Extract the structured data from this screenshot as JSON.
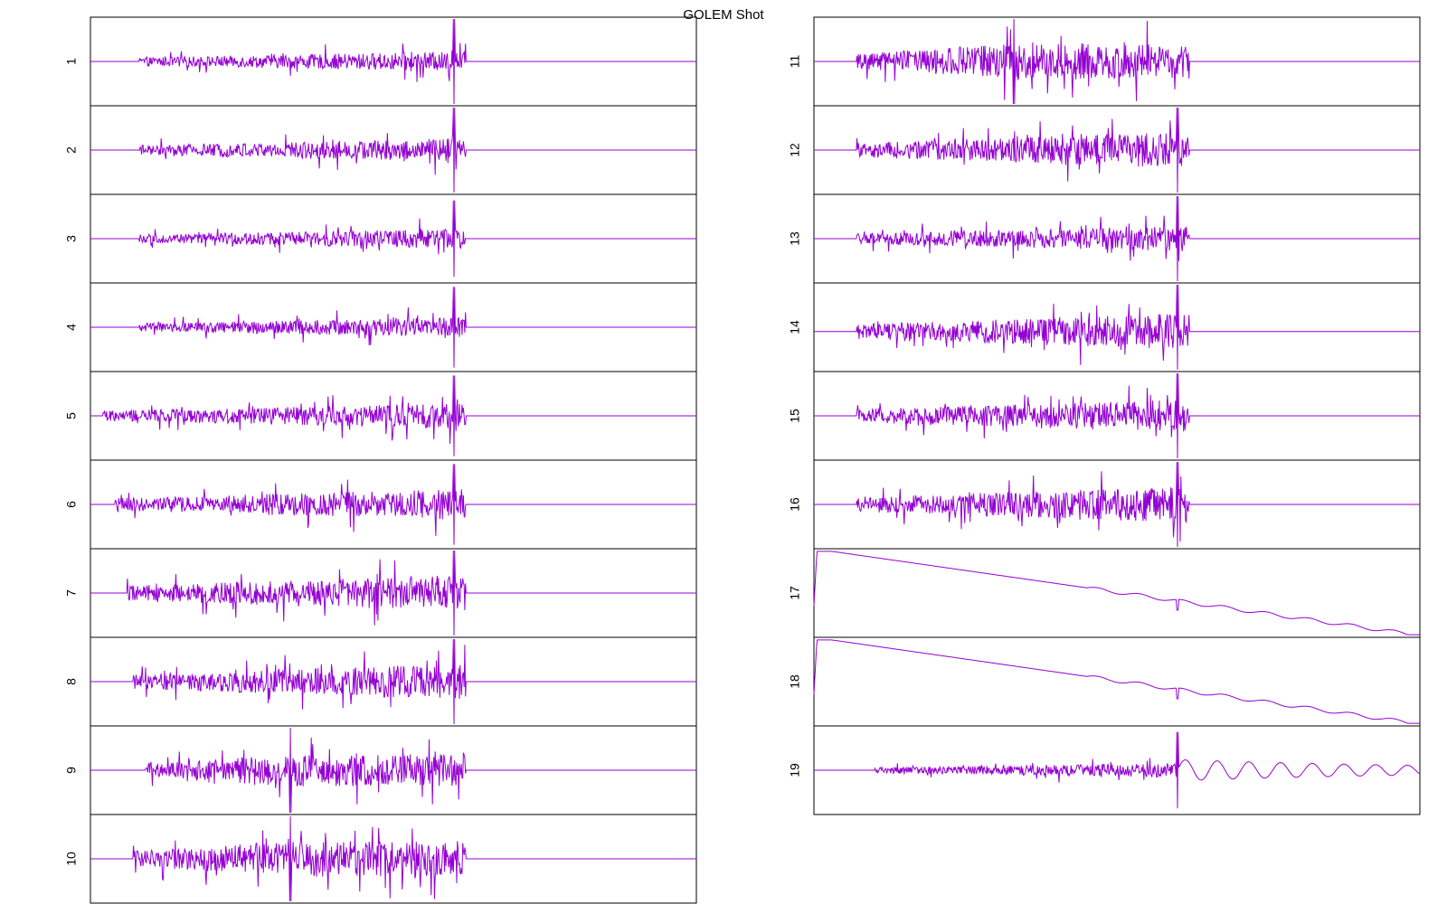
{
  "title": "GOLEM Shot",
  "colors": {
    "trace": "#9400D3",
    "frame": "#000000",
    "background": "#ffffff"
  },
  "chart_data": {
    "type": "line",
    "title": "GOLEM Shot",
    "grid": false,
    "legend": "none",
    "time_range": [
      0,
      1
    ],
    "y_range": [
      -1,
      1
    ],
    "channels": [
      {
        "label": "1",
        "column": "left",
        "kind": "noise",
        "baseline": 0.0,
        "onset": 0.08,
        "peak": 0.55,
        "spike_at": 0.6,
        "spike_amp": 1.0,
        "end": 0.62
      },
      {
        "label": "2",
        "column": "left",
        "kind": "noise",
        "baseline": 0.0,
        "onset": 0.08,
        "peak": 0.65,
        "spike_at": 0.6,
        "spike_amp": 1.0,
        "end": 0.62
      },
      {
        "label": "3",
        "column": "left",
        "kind": "noise",
        "baseline": 0.0,
        "onset": 0.08,
        "peak": 0.55,
        "spike_at": 0.6,
        "spike_amp": 0.9,
        "end": 0.62
      },
      {
        "label": "4",
        "column": "left",
        "kind": "noise",
        "baseline": 0.0,
        "onset": 0.08,
        "peak": 0.55,
        "spike_at": 0.6,
        "spike_amp": 0.95,
        "end": 0.62
      },
      {
        "label": "5",
        "column": "left",
        "kind": "noise",
        "baseline": 0.0,
        "onset": 0.02,
        "peak": 0.7,
        "spike_at": 0.6,
        "spike_amp": 0.95,
        "end": 0.62
      },
      {
        "label": "6",
        "column": "left",
        "kind": "noise",
        "baseline": 0.0,
        "onset": 0.04,
        "peak": 0.85,
        "spike_at": 0.6,
        "spike_amp": 0.95,
        "end": 0.62
      },
      {
        "label": "7",
        "column": "left",
        "kind": "noise",
        "baseline": 0.0,
        "onset": 0.06,
        "peak": 1.0,
        "spike_at": 0.6,
        "spike_amp": 1.0,
        "end": 0.62
      },
      {
        "label": "8",
        "column": "left",
        "kind": "noise",
        "baseline": 0.0,
        "onset": 0.07,
        "peak": 1.0,
        "spike_at": 0.6,
        "spike_amp": 1.0,
        "end": 0.62
      },
      {
        "label": "9",
        "column": "left",
        "kind": "noise",
        "baseline": 0.0,
        "onset": 0.09,
        "peak": 0.9,
        "spike_at": 0.33,
        "spike_amp": 1.0,
        "end": 0.62
      },
      {
        "label": "10",
        "column": "left",
        "kind": "noise",
        "baseline": 0.0,
        "onset": 0.07,
        "peak": 1.0,
        "spike_at": 0.33,
        "spike_amp": 1.0,
        "end": 0.62
      },
      {
        "label": "11",
        "column": "right",
        "kind": "noise",
        "baseline": 0.0,
        "onset": 0.07,
        "peak": 1.0,
        "spike_at": 0.33,
        "spike_amp": 1.0,
        "end": 0.62
      },
      {
        "label": "12",
        "column": "right",
        "kind": "noise",
        "baseline": 0.0,
        "onset": 0.07,
        "peak": 1.0,
        "spike_at": 0.6,
        "spike_amp": 1.0,
        "end": 0.62
      },
      {
        "label": "13",
        "column": "right",
        "kind": "noise",
        "baseline": 0.0,
        "onset": 0.07,
        "peak": 0.7,
        "spike_at": 0.6,
        "spike_amp": 1.0,
        "end": 0.62
      },
      {
        "label": "14",
        "column": "right",
        "kind": "noise",
        "baseline": -0.1,
        "onset": 0.07,
        "peak": 1.0,
        "spike_at": 0.6,
        "spike_amp": 1.0,
        "end": 0.62
      },
      {
        "label": "15",
        "column": "right",
        "kind": "noise",
        "baseline": 0.0,
        "onset": 0.07,
        "peak": 0.9,
        "spike_at": 0.6,
        "spike_amp": 1.0,
        "end": 0.62
      },
      {
        "label": "16",
        "column": "right",
        "kind": "noise",
        "baseline": 0.0,
        "onset": 0.07,
        "peak": 1.0,
        "spike_at": 0.6,
        "spike_amp": 1.0,
        "end": 0.62
      },
      {
        "label": "17",
        "column": "right",
        "kind": "ramp",
        "start": 1.0,
        "stop": -1.0,
        "spike_at": 0.6
      },
      {
        "label": "18",
        "column": "right",
        "kind": "ramp",
        "start": 1.0,
        "stop": -1.0,
        "spike_at": 0.6
      },
      {
        "label": "19",
        "column": "right",
        "kind": "noise_osc",
        "baseline": 0.0,
        "onset": 0.1,
        "peak": 0.4,
        "spike_at": 0.6,
        "spike_amp": 0.9,
        "end": 1.0
      }
    ]
  }
}
